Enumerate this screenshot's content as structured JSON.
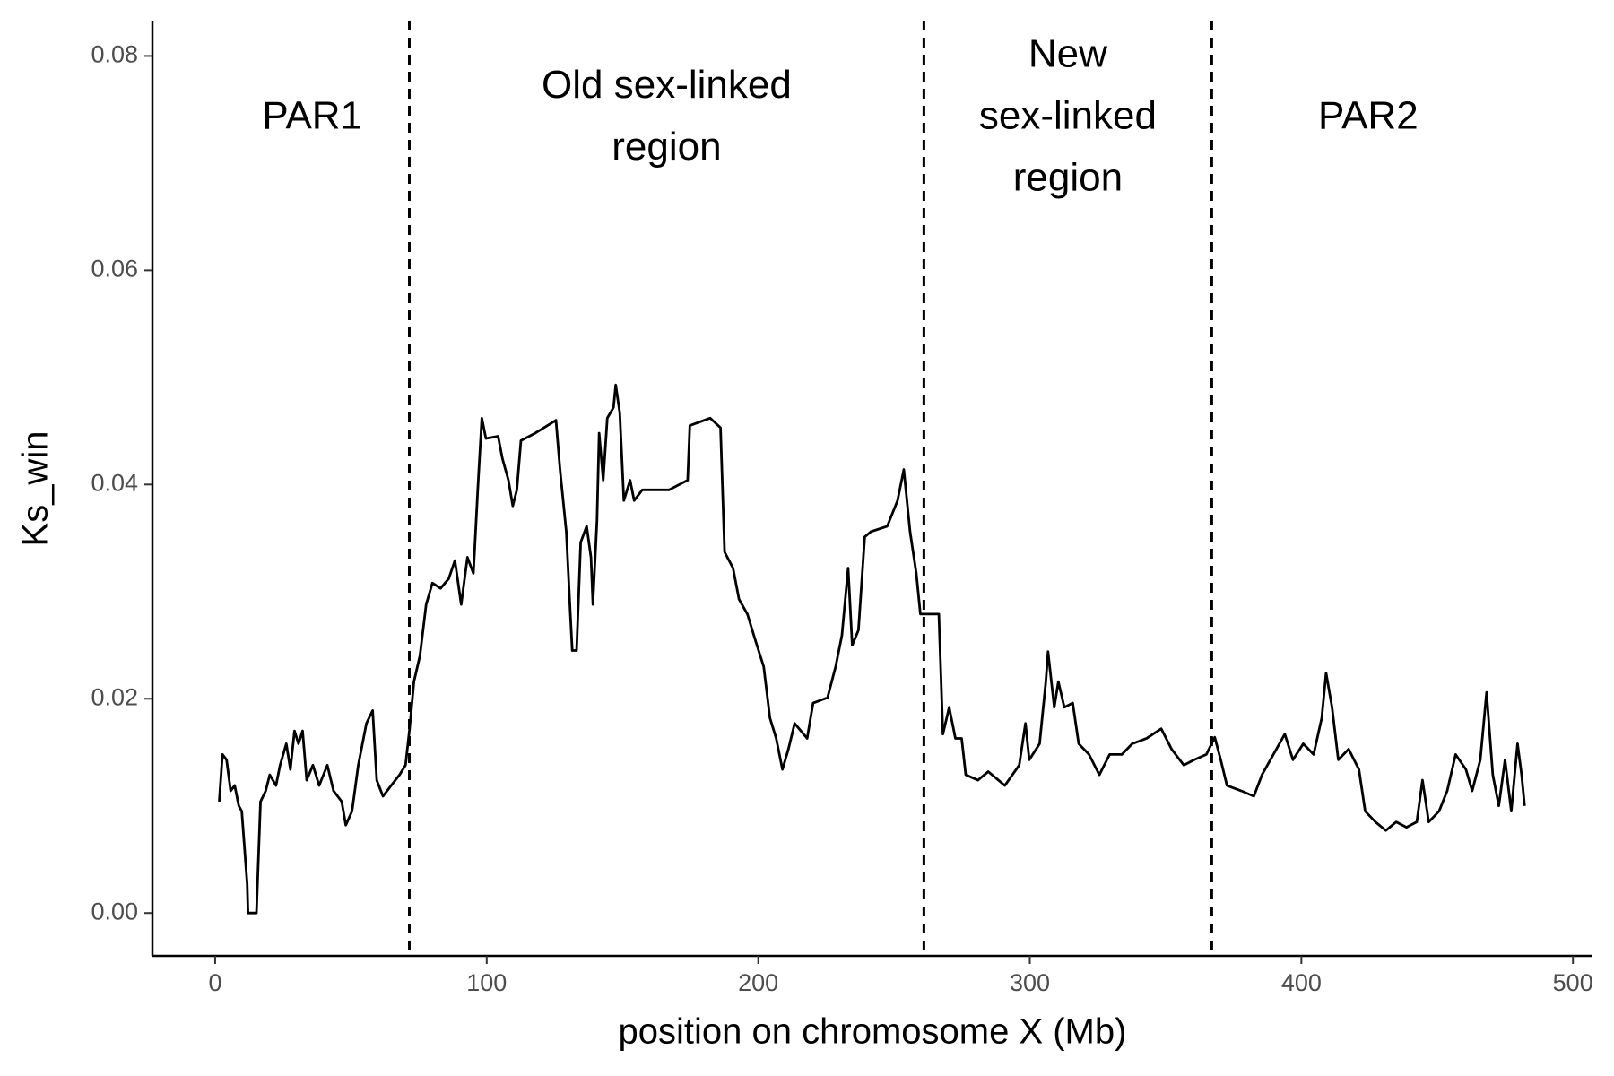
{
  "chart_data": {
    "type": "line",
    "x_label": "position on chromosome X (Mb)",
    "y_label": "Ks_win",
    "color": "#000000",
    "xlim": [
      -23.1,
      507.2
    ],
    "ylim": [
      -0.004,
      0.0833
    ],
    "xticks": [
      0,
      100,
      200,
      300,
      400,
      500
    ],
    "yticks": [
      {
        "value": 0,
        "label": "0.00"
      },
      {
        "value": 0.02,
        "label": "0.02"
      },
      {
        "value": 0.04,
        "label": "0.04"
      },
      {
        "value": 0.06,
        "label": "0.06"
      },
      {
        "value": 0.08,
        "label": "0.08"
      }
    ],
    "vlines": [
      71.5,
      261,
      367
    ],
    "annotations": [
      {
        "lines": [
          "PAR1"
        ]
      },
      {
        "lines": [
          "Old sex-linked",
          "region"
        ]
      },
      {
        "lines": [
          "New",
          "sex-linked",
          "region"
        ]
      },
      {
        "lines": [
          "PAR2"
        ]
      }
    ],
    "x": [
      1.5,
      2.7,
      4.2,
      5.7,
      7.2,
      8.7,
      9.8,
      11.8,
      12.1,
      15.2,
      16.7,
      18.6,
      20.1,
      22.4,
      23.9,
      26.2,
      27.7,
      29.2,
      30.7,
      32.2,
      33.7,
      36.0,
      38.3,
      41.3,
      43.6,
      46.6,
      48.1,
      50.4,
      52.7,
      55.7,
      58.0,
      59.5,
      61.8,
      64.8,
      67.9,
      70.1,
      71.6,
      73.2,
      75.4,
      77.7,
      80.0,
      83.0,
      86.0,
      88.3,
      90.6,
      92.9,
      95.1,
      96.7,
      98.2,
      99.7,
      104.2,
      105.8,
      108.0,
      109.6,
      111.1,
      112.6,
      117.9,
      125.5,
      127.0,
      129.3,
      130.8,
      131.5,
      133.1,
      134.6,
      136.8,
      138.4,
      139.1,
      140.6,
      141.4,
      142.9,
      144.4,
      146.7,
      147.5,
      149.0,
      150.5,
      152.8,
      154.3,
      157.3,
      167.2,
      174.0,
      174.8,
      182.3,
      186.1,
      187.6,
      190.7,
      192.9,
      196.0,
      199.0,
      202.0,
      204.3,
      206.6,
      208.9,
      211.1,
      213.4,
      218.0,
      220.2,
      225.5,
      228.5,
      230.8,
      233.1,
      234.6,
      236.9,
      239.2,
      241.5,
      247.5,
      251.3,
      253.6,
      255.9,
      258.2,
      259.7,
      266.5,
      268.0,
      270.3,
      272.6,
      274.9,
      276.4,
      280.9,
      284.7,
      290.8,
      296.1,
      298.4,
      299.8,
      303.6,
      305.9,
      306.7,
      309.0,
      310.5,
      312.7,
      315.8,
      318.0,
      321.8,
      325.6,
      329.4,
      333.9,
      337.7,
      343.0,
      348.4,
      352.2,
      356.7,
      360.5,
      365.0,
      368.1,
      370.3,
      372.6,
      377.9,
      382.5,
      385.5,
      390.8,
      393.9,
      396.9,
      400.7,
      404.5,
      407.5,
      409.1,
      411.3,
      413.6,
      417.4,
      421.2,
      423.5,
      427.3,
      431.1,
      434.9,
      438.7,
      442.5,
      444.6,
      446.9,
      450.7,
      453.7,
      456.8,
      460.6,
      462.9,
      465.9,
      468.2,
      470.5,
      472.7,
      475.0,
      477.3,
      479.6,
      481.1,
      482.2
    ],
    "values": [
      0.0104,
      0.0148,
      0.0143,
      0.0114,
      0.0119,
      0.01,
      0.0095,
      0.0027,
      0,
      0,
      0.0104,
      0.0114,
      0.0129,
      0.0119,
      0.0138,
      0.0158,
      0.0134,
      0.017,
      0.0158,
      0.017,
      0.0124,
      0.0138,
      0.0119,
      0.0138,
      0.0114,
      0.0104,
      0.0082,
      0.0095,
      0.0138,
      0.0177,
      0.0189,
      0.0124,
      0.0109,
      0.0119,
      0.0129,
      0.0138,
      0.0172,
      0.0216,
      0.024,
      0.0288,
      0.0308,
      0.0303,
      0.0312,
      0.0329,
      0.0288,
      0.0332,
      0.0317,
      0.0395,
      0.0462,
      0.0443,
      0.0445,
      0.0424,
      0.0404,
      0.038,
      0.0395,
      0.0441,
      0.0448,
      0.046,
      0.0414,
      0.0356,
      0.0279,
      0.0245,
      0.0245,
      0.0346,
      0.0361,
      0.0332,
      0.0288,
      0.0366,
      0.0448,
      0.0404,
      0.0462,
      0.0472,
      0.0493,
      0.0467,
      0.0385,
      0.0404,
      0.0385,
      0.0395,
      0.0395,
      0.0404,
      0.0455,
      0.0462,
      0.0453,
      0.0337,
      0.0322,
      0.0293,
      0.0279,
      0.0254,
      0.023,
      0.0182,
      0.0163,
      0.0134,
      0.0153,
      0.0177,
      0.0163,
      0.0196,
      0.0201,
      0.023,
      0.0259,
      0.0322,
      0.025,
      0.0264,
      0.0351,
      0.0356,
      0.0361,
      0.0385,
      0.0414,
      0.0356,
      0.0317,
      0.0279,
      0.0279,
      0.0167,
      0.0192,
      0.0163,
      0.0163,
      0.0129,
      0.0124,
      0.0132,
      0.0119,
      0.0138,
      0.0177,
      0.0143,
      0.0158,
      0.0216,
      0.0244,
      0.0192,
      0.0216,
      0.0192,
      0.0196,
      0.0158,
      0.0148,
      0.0129,
      0.0148,
      0.0148,
      0.0158,
      0.0163,
      0.0172,
      0.0153,
      0.0138,
      0.0143,
      0.0148,
      0.0164,
      0.0143,
      0.0119,
      0.0114,
      0.0109,
      0.0129,
      0.0153,
      0.0167,
      0.0143,
      0.0158,
      0.0148,
      0.0182,
      0.0224,
      0.0192,
      0.0143,
      0.0153,
      0.0134,
      0.0095,
      0.0085,
      0.0077,
      0.0085,
      0.008,
      0.0085,
      0.0124,
      0.0085,
      0.0095,
      0.0114,
      0.0148,
      0.0134,
      0.0114,
      0.0143,
      0.0206,
      0.0129,
      0.01,
      0.0143,
      0.0095,
      0.0158,
      0.0129,
      0.01
    ]
  }
}
